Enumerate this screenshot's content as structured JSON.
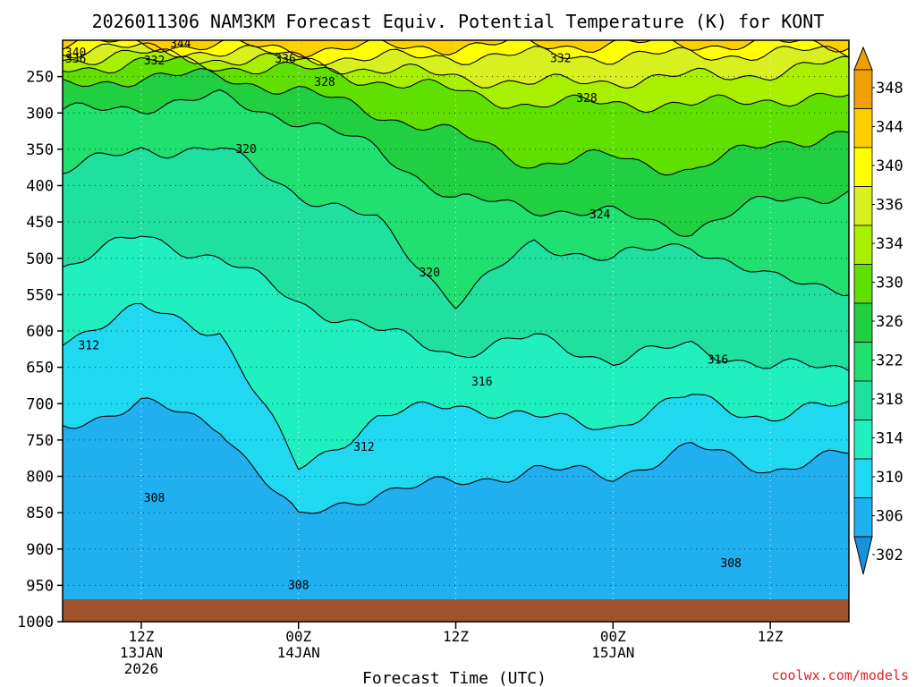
{
  "chart_data": {
    "type": "heatmap",
    "title": "2026011306 NAM3KM Forecast Equiv. Potential Temperature (K) for KONT",
    "xlabel": "Forecast Time (UTC)",
    "ylabel": "",
    "credit": "coolwx.com/models",
    "x_range_hours": [
      0,
      60
    ],
    "x_ticks": [
      {
        "hour": 6,
        "line1": "12Z",
        "line2": "13JAN",
        "line3": "2026"
      },
      {
        "hour": 18,
        "line1": "00Z",
        "line2": "14JAN",
        "line3": ""
      },
      {
        "hour": 30,
        "line1": "12Z",
        "line2": "",
        "line3": ""
      },
      {
        "hour": 42,
        "line1": "00Z",
        "line2": "15JAN",
        "line3": ""
      },
      {
        "hour": 54,
        "line1": "12Z",
        "line2": "",
        "line3": ""
      }
    ],
    "y_range_hpa": [
      200,
      1000
    ],
    "y_ticks": [
      250,
      300,
      350,
      400,
      450,
      500,
      550,
      600,
      650,
      700,
      750,
      800,
      850,
      900,
      950,
      1000
    ],
    "ground_color": "#a0522d",
    "colorbar": {
      "labels": [
        "348",
        "344",
        "340",
        "336",
        "334",
        "330",
        "326",
        "322",
        "318",
        "314",
        "310",
        "306",
        "302"
      ],
      "colors": [
        "#f0a000",
        "#ffd000",
        "#ffff00",
        "#d8f020",
        "#a8f000",
        "#60e000",
        "#20d040",
        "#20e070",
        "#20e0a0",
        "#20f0c0",
        "#20d8f0",
        "#20b0f0",
        "#1890e0"
      ]
    },
    "fill_levels": [
      302,
      306,
      310,
      314,
      318,
      322,
      326,
      330,
      334,
      336,
      340,
      344,
      348
    ],
    "series": [
      {
        "name": "310 K",
        "hours": [
          0,
          6,
          12,
          18,
          24,
          30,
          36,
          42,
          48,
          54,
          60
        ],
        "pressure_hpa": [
          730,
          700,
          730,
          860,
          820,
          810,
          790,
          800,
          760,
          790,
          770
        ]
      },
      {
        "name": "312 K",
        "hours": [
          0,
          6,
          12,
          18,
          24,
          30,
          36,
          42,
          48,
          54,
          60
        ],
        "pressure_hpa": [
          610,
          570,
          600,
          790,
          720,
          700,
          720,
          730,
          690,
          720,
          700
        ]
      },
      {
        "name": "316 K",
        "hours": [
          0,
          6,
          12,
          18,
          24,
          30,
          36,
          42,
          48,
          54,
          60
        ],
        "pressure_hpa": [
          510,
          470,
          500,
          560,
          600,
          630,
          610,
          640,
          620,
          650,
          650
        ]
      },
      {
        "name": "320 K",
        "hours": [
          0,
          6,
          12,
          18,
          24,
          30,
          36,
          42,
          48,
          54,
          60
        ],
        "pressure_hpa": [
          380,
          350,
          350,
          410,
          450,
          560,
          480,
          500,
          480,
          530,
          540
        ]
      },
      {
        "name": "324 K",
        "hours": [
          0,
          6,
          12,
          18,
          24,
          30,
          36,
          42,
          48,
          54,
          60
        ],
        "pressure_hpa": [
          300,
          290,
          280,
          310,
          350,
          420,
          430,
          440,
          460,
          420,
          410
        ]
      },
      {
        "name": "328 K",
        "hours": [
          0,
          6,
          12,
          18,
          24,
          30,
          36,
          42,
          48,
          54,
          60
        ],
        "pressure_hpa": [
          265,
          250,
          250,
          270,
          300,
          330,
          370,
          360,
          380,
          340,
          330
        ]
      },
      {
        "name": "332 K",
        "hours": [
          0,
          6,
          12,
          18,
          24,
          30,
          36,
          42,
          48,
          54,
          60
        ],
        "pressure_hpa": [
          240,
          230,
          235,
          240,
          255,
          270,
          290,
          285,
          290,
          280,
          280
        ]
      },
      {
        "name": "336 K",
        "hours": [
          0,
          6,
          12,
          18,
          24,
          30,
          36,
          42,
          48,
          54,
          60
        ],
        "pressure_hpa": [
          225,
          220,
          225,
          230,
          240,
          250,
          260,
          255,
          250,
          245,
          230
        ]
      },
      {
        "name": "340 K",
        "hours": [
          0,
          6,
          12,
          18,
          24,
          30,
          36,
          42,
          48,
          54,
          60
        ],
        "pressure_hpa": [
          215,
          212,
          215,
          222,
          225,
          222,
          220,
          222,
          220,
          218,
          215
        ]
      },
      {
        "name": "344 K",
        "hours": [
          0,
          6,
          12,
          18,
          24,
          30,
          36,
          42,
          48,
          54,
          60
        ],
        "pressure_hpa": [
          205,
          205,
          208,
          212,
          210,
          208,
          206,
          206,
          205,
          205,
          205
        ]
      }
    ],
    "contour_labels": [
      {
        "text": "344",
        "hour": 9,
        "pressure": 205
      },
      {
        "text": "340",
        "hour": 1,
        "pressure": 217
      },
      {
        "text": "336",
        "hour": 1,
        "pressure": 226
      },
      {
        "text": "332",
        "hour": 7,
        "pressure": 228
      },
      {
        "text": "336",
        "hour": 17,
        "pressure": 226
      },
      {
        "text": "332",
        "hour": 38,
        "pressure": 225
      },
      {
        "text": "328",
        "hour": 20,
        "pressure": 258
      },
      {
        "text": "328",
        "hour": 40,
        "pressure": 280
      },
      {
        "text": "320",
        "hour": 14,
        "pressure": 350
      },
      {
        "text": "324",
        "hour": 41,
        "pressure": 440
      },
      {
        "text": "320",
        "hour": 28,
        "pressure": 520
      },
      {
        "text": "316",
        "hour": 32,
        "pressure": 670
      },
      {
        "text": "316",
        "hour": 50,
        "pressure": 640
      },
      {
        "text": "312",
        "hour": 2,
        "pressure": 620
      },
      {
        "text": "312",
        "hour": 23,
        "pressure": 760
      },
      {
        "text": "308",
        "hour": 7,
        "pressure": 830
      },
      {
        "text": "308",
        "hour": 18,
        "pressure": 950
      },
      {
        "text": "308",
        "hour": 51,
        "pressure": 920
      }
    ]
  }
}
